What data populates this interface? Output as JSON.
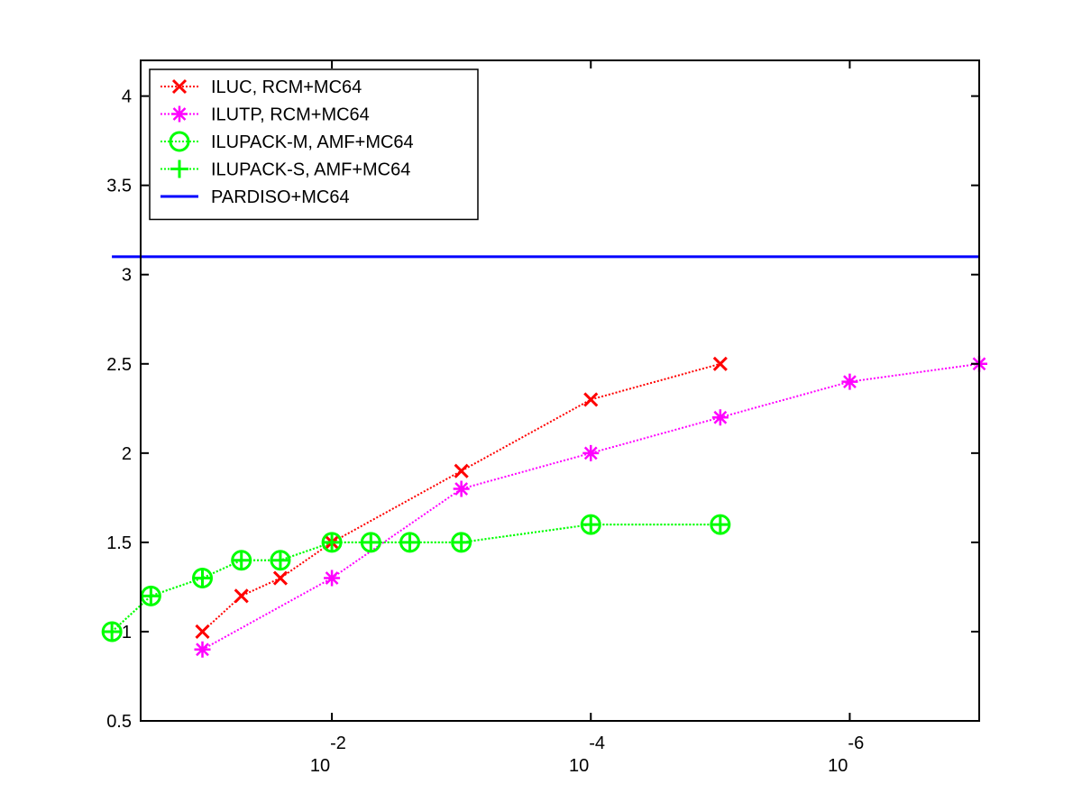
{
  "chart_data": {
    "type": "line",
    "title": "",
    "xlabel": "",
    "ylabel": "",
    "x_scale": "log",
    "x_direction": "decreasing",
    "xlim": [
      0.3,
      1e-07
    ],
    "ylim": [
      0.5,
      4.2
    ],
    "grid": false,
    "legend_position": "top-left",
    "x_ticks": [
      {
        "value": 0.01,
        "base": "10",
        "exponent": "-2"
      },
      {
        "value": 0.0001,
        "base": "10",
        "exponent": "-4"
      },
      {
        "value": 1e-06,
        "base": "10",
        "exponent": "-6"
      }
    ],
    "y_ticks": [
      "0.5",
      "1",
      "1.5",
      "2",
      "2.5",
      "3",
      "3.5",
      "4"
    ],
    "series": [
      {
        "name": "ILUC, RCM+MC64",
        "color": "#ff0000",
        "line_style": "dotted",
        "marker": "x",
        "points": [
          [
            0.1,
            1.0
          ],
          [
            0.05,
            1.2
          ],
          [
            0.025,
            1.3
          ],
          [
            0.01,
            1.5
          ],
          [
            0.001,
            1.9
          ],
          [
            0.0001,
            2.3
          ],
          [
            1e-05,
            2.5
          ]
        ]
      },
      {
        "name": "ILUTP, RCM+MC64",
        "color": "#ff00ff",
        "line_style": "dotted",
        "marker": "asterisk",
        "points": [
          [
            0.1,
            0.9
          ],
          [
            0.01,
            1.3
          ],
          [
            0.001,
            1.8
          ],
          [
            0.0001,
            2.0
          ],
          [
            1e-05,
            2.2
          ],
          [
            1e-06,
            2.4
          ],
          [
            1e-07,
            2.5
          ]
        ]
      },
      {
        "name": "ILUPACK-M, AMF+MC64",
        "color": "#00ff00",
        "line_style": "dotted",
        "marker": "circle",
        "points": [
          [
            0.5,
            1.0
          ],
          [
            0.25,
            1.2
          ],
          [
            0.1,
            1.3
          ],
          [
            0.05,
            1.4
          ],
          [
            0.025,
            1.4
          ],
          [
            0.01,
            1.5
          ],
          [
            0.005,
            1.5
          ],
          [
            0.0025,
            1.5
          ],
          [
            0.001,
            1.5
          ],
          [
            0.0001,
            1.6
          ],
          [
            1e-05,
            1.6
          ]
        ]
      },
      {
        "name": "ILUPACK-S, AMF+MC64",
        "color": "#00ff00",
        "line_style": "dotted",
        "marker": "plus",
        "points": [
          [
            0.5,
            1.0
          ],
          [
            0.25,
            1.2
          ],
          [
            0.1,
            1.3
          ],
          [
            0.05,
            1.4
          ],
          [
            0.025,
            1.4
          ],
          [
            0.01,
            1.5
          ],
          [
            0.005,
            1.5
          ],
          [
            0.0025,
            1.5
          ],
          [
            0.001,
            1.5
          ],
          [
            0.0001,
            1.6
          ],
          [
            1e-05,
            1.6
          ]
        ]
      },
      {
        "name": "PARDISO+MC64",
        "color": "#0000ff",
        "line_style": "solid",
        "marker": "none",
        "points": [
          [
            0.5,
            3.1
          ],
          [
            1e-07,
            3.1
          ]
        ]
      }
    ]
  }
}
